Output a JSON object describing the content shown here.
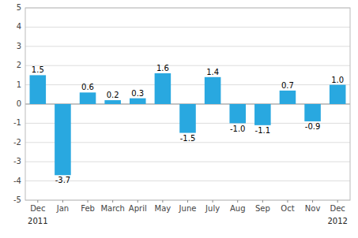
{
  "chart_data": {
    "type": "bar",
    "categories": [
      "Dec",
      "Jan",
      "Feb",
      "March",
      "April",
      "May",
      "June",
      "July",
      "Aug",
      "Sep",
      "Oct",
      "Nov",
      "Dec"
    ],
    "values": [
      1.5,
      -3.7,
      0.6,
      0.2,
      0.3,
      1.6,
      -1.5,
      1.4,
      -1.0,
      -1.1,
      0.7,
      -0.9,
      1.0
    ],
    "value_labels": [
      "1.5",
      "-3.7",
      "0.6",
      "0.2",
      "0.3",
      "1.6",
      "-1.5",
      "1.4",
      "-1.0",
      "-1.1",
      "0.7",
      "-0.9",
      "1.0"
    ],
    "data_labels": true,
    "color": "#29a8e0",
    "ylim": [
      -5,
      5
    ],
    "yticks": [
      -5,
      -4,
      -3,
      -2,
      -1,
      0,
      1,
      2,
      3,
      4,
      5
    ],
    "grid": true,
    "annotations": [
      "2011",
      "2012"
    ]
  }
}
